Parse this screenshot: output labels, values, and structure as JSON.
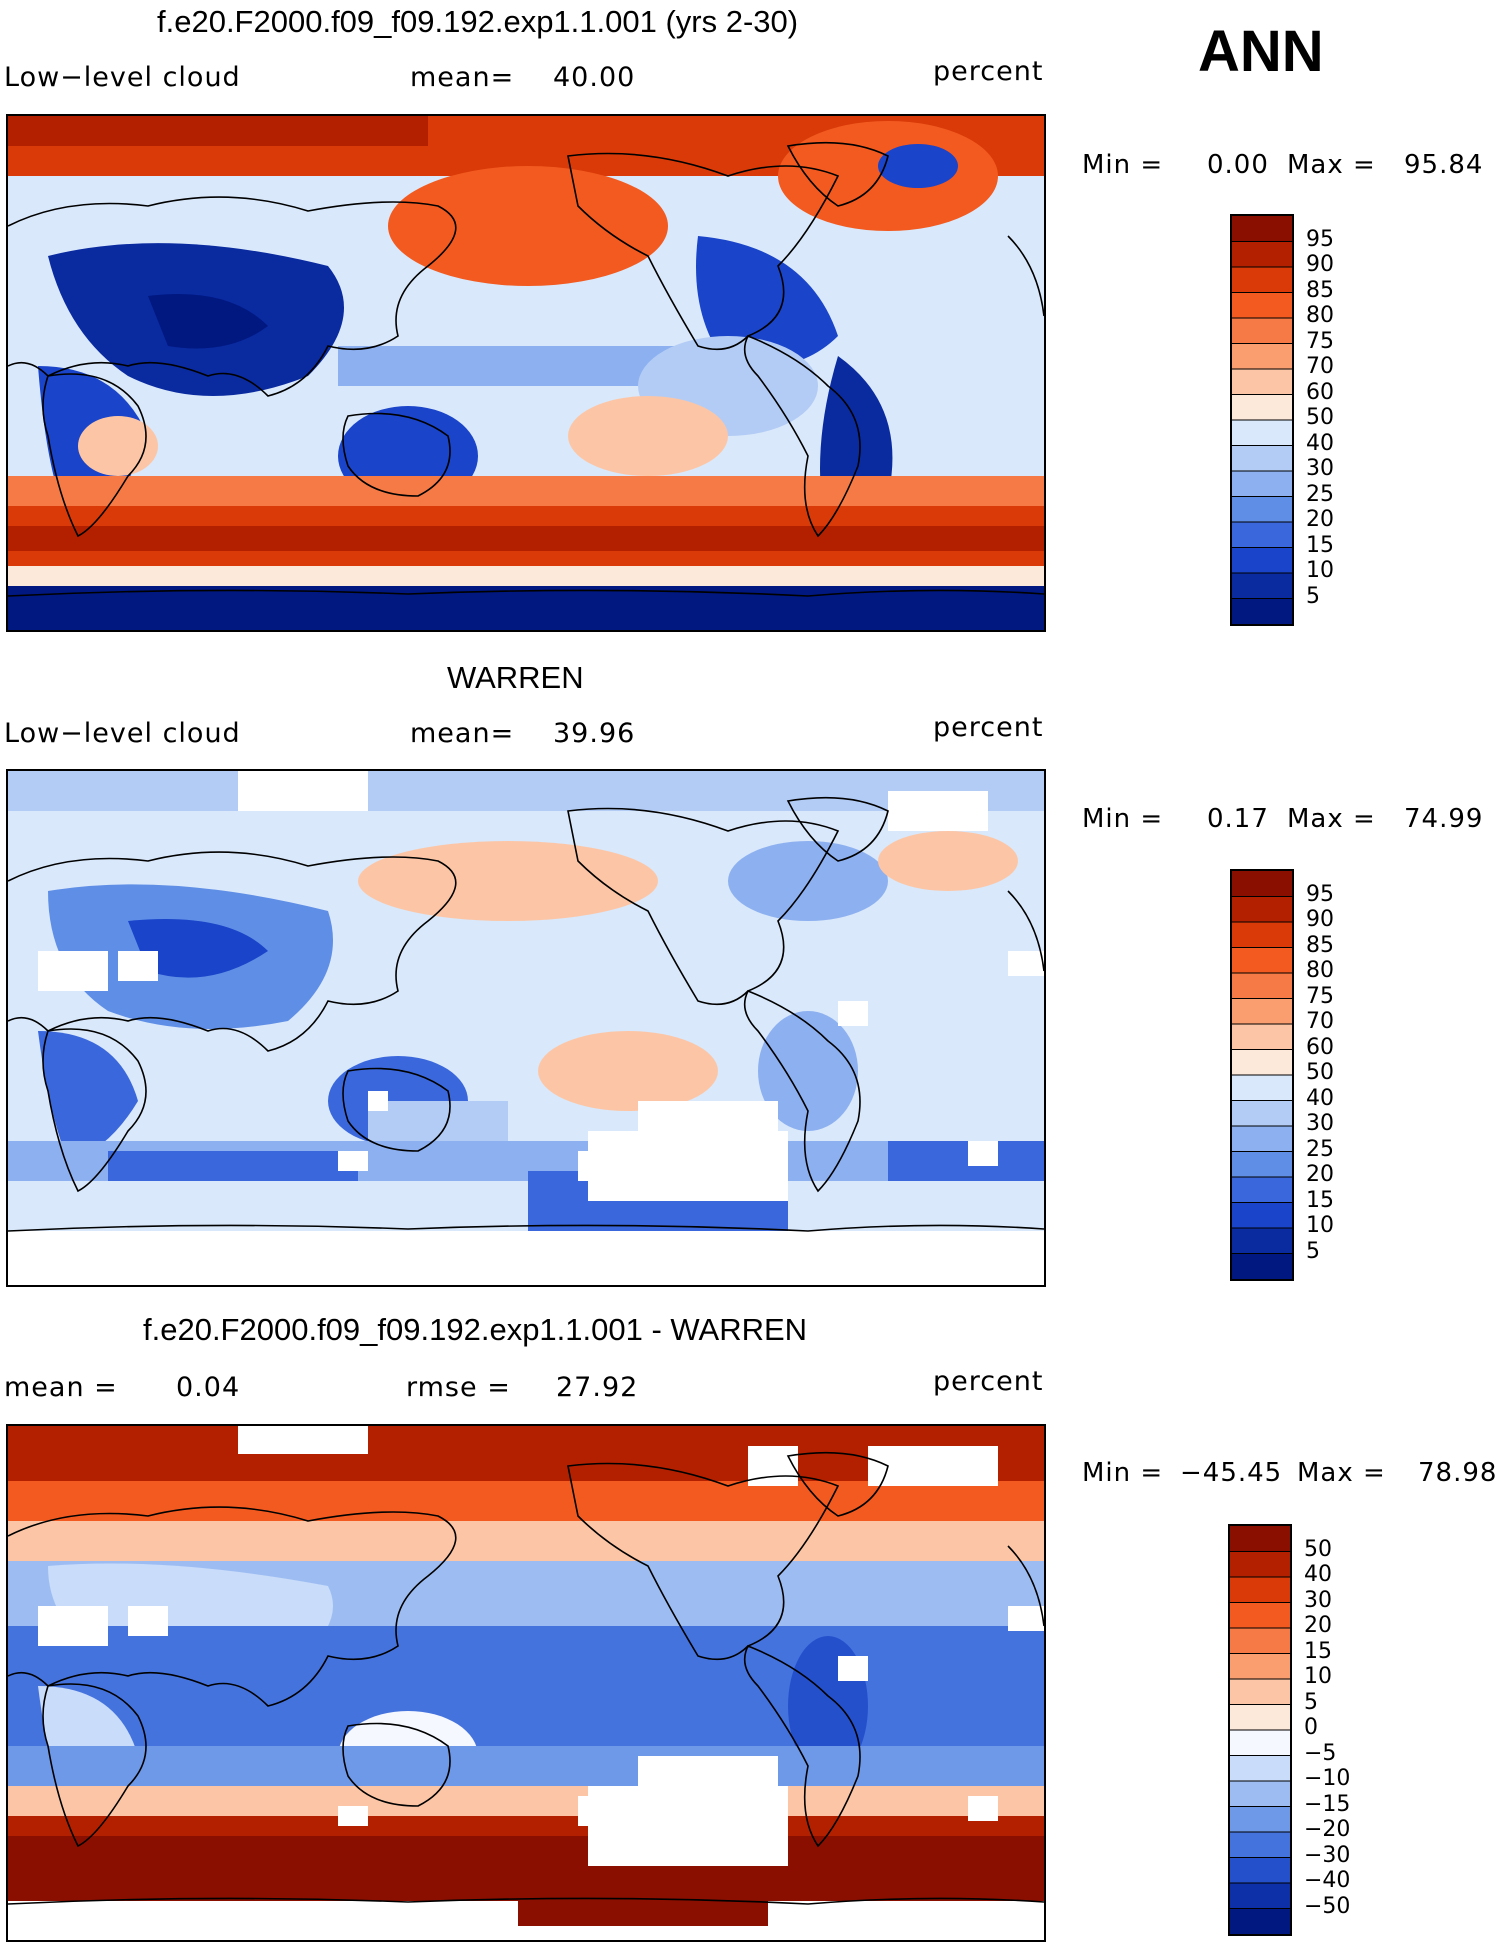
{
  "header": {
    "season": "ANN"
  },
  "panels": [
    {
      "title": "f.e20.F2000.f09_f09.192.exp1.1.001 (yrs 2-30)",
      "left_label": "Low−level cloud",
      "mid_label": "mean=",
      "mid_value": "40.00",
      "units": "percent",
      "min_label": "Min =",
      "min_value": "0.00",
      "max_label": "Max =",
      "max_value": "95.84",
      "colorbar_levels": [
        "95",
        "90",
        "85",
        "80",
        "75",
        "70",
        "60",
        "50",
        "40",
        "30",
        "25",
        "20",
        "15",
        "10",
        "5"
      ],
      "colorbar_colors": [
        "#8a0f00",
        "#b32000",
        "#d93a08",
        "#f25a20",
        "#f57a45",
        "#fa9e70",
        "#fcc6a6",
        "#fde9da",
        "#d9e8fa",
        "#b3ccf5",
        "#8db0f0",
        "#5f8ee6",
        "#3a68dc",
        "#1a44c9",
        "#0a2aa0",
        "#001880"
      ]
    },
    {
      "title": "WARREN",
      "left_label": "Low−level cloud",
      "mid_label": "mean=",
      "mid_value": "39.96",
      "units": "percent",
      "min_label": "Min =",
      "min_value": "0.17",
      "max_label": "Max =",
      "max_value": "74.99",
      "colorbar_levels": [
        "95",
        "90",
        "85",
        "80",
        "75",
        "70",
        "60",
        "50",
        "40",
        "30",
        "25",
        "20",
        "15",
        "10",
        "5"
      ],
      "colorbar_colors": [
        "#8a0f00",
        "#b32000",
        "#d93a08",
        "#f25a20",
        "#f57a45",
        "#fa9e70",
        "#fcc6a6",
        "#fde9da",
        "#d9e8fa",
        "#b3ccf5",
        "#8db0f0",
        "#5f8ee6",
        "#3a68dc",
        "#1a44c9",
        "#0a2aa0",
        "#001880"
      ]
    },
    {
      "title": "f.e20.F2000.f09_f09.192.exp1.1.001 - WARREN",
      "left_label": "mean =",
      "left_value": "0.04",
      "mid_label": "rmse =",
      "mid_value": "27.92",
      "units": "percent",
      "min_label": "Min =",
      "min_value": "−45.45",
      "max_label": "Max =",
      "max_value": "78.98",
      "colorbar_levels": [
        "50",
        "40",
        "30",
        "20",
        "15",
        "10",
        "5",
        "0",
        "−5",
        "−10",
        "−15",
        "−20",
        "−30",
        "−40",
        "−50"
      ],
      "colorbar_colors": [
        "#8a0f00",
        "#b32000",
        "#d93a08",
        "#f25a20",
        "#f57a45",
        "#fa9e70",
        "#fcc6a6",
        "#fde9da",
        "#f5f8ff",
        "#c9dcfa",
        "#9dbdf2",
        "#6e98e8",
        "#4573de",
        "#2550cc",
        "#0d30a8",
        "#001880"
      ]
    }
  ]
}
